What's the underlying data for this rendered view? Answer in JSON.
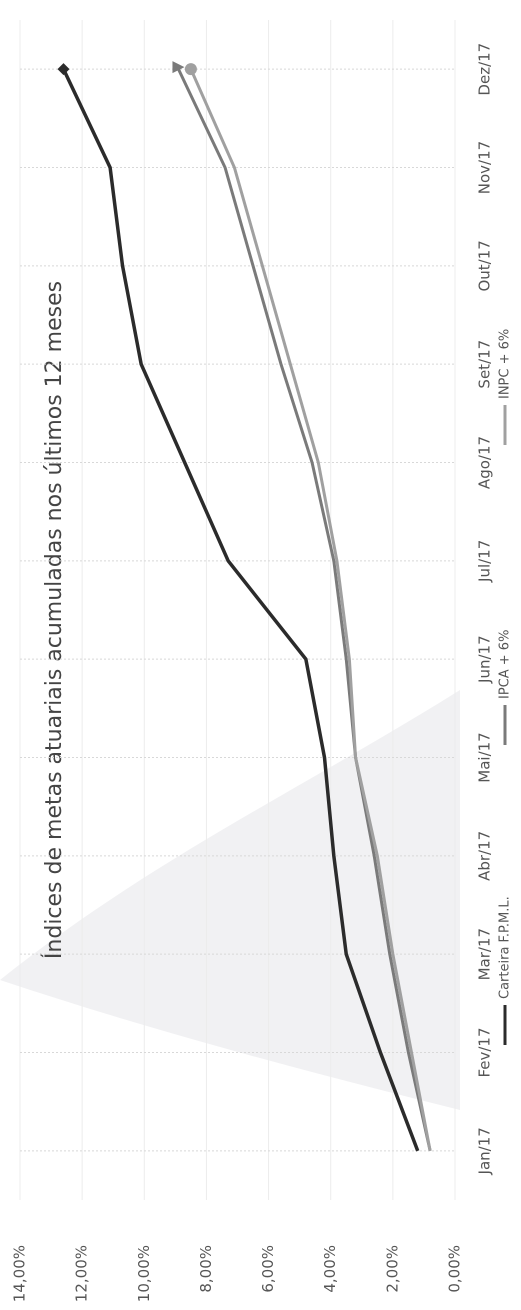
{
  "chart_data": {
    "type": "line",
    "title": "Índices de metas atuariais acumuladas nos últimos 12 meses",
    "categories": [
      "Jan/17",
      "Fev/17",
      "Mar/17",
      "Abr/17",
      "Mai/17",
      "Jun/17",
      "Jul/17",
      "Ago/17",
      "Set/17",
      "Out/17",
      "Nov/17",
      "Dez/17"
    ],
    "series": [
      {
        "name": "Carteira F.P.M.L.",
        "color": "#2b2b2b",
        "marker": "diamond",
        "values": [
          1.2,
          2.4,
          3.5,
          3.9,
          4.2,
          4.8,
          7.3,
          8.7,
          10.1,
          10.7,
          11.1,
          12.6
        ]
      },
      {
        "name": "IPCA + 6%",
        "color": "#7a7a7a",
        "marker": "arrow",
        "values": [
          0.8,
          1.5,
          2.1,
          2.6,
          3.2,
          3.5,
          3.9,
          4.6,
          5.6,
          6.5,
          7.4,
          8.9
        ]
      },
      {
        "name": "INPC + 6%",
        "color": "#a0a0a0",
        "marker": "circle",
        "values": [
          0.8,
          1.4,
          2.0,
          2.5,
          3.2,
          3.4,
          3.8,
          4.4,
          5.3,
          6.2,
          7.1,
          8.5
        ]
      }
    ],
    "ylim": [
      0,
      14
    ],
    "yticks": [
      {
        "value": 0,
        "label": "0,00%"
      },
      {
        "value": 2,
        "label": "2,00%"
      },
      {
        "value": 4,
        "label": "4,00%"
      },
      {
        "value": 6,
        "label": "6,00%"
      },
      {
        "value": 8,
        "label": "8,00%"
      },
      {
        "value": 10,
        "label": "10,00%"
      },
      {
        "value": 12,
        "label": "12,00%"
      },
      {
        "value": 14,
        "label": "14,00%"
      }
    ],
    "grid": true
  }
}
